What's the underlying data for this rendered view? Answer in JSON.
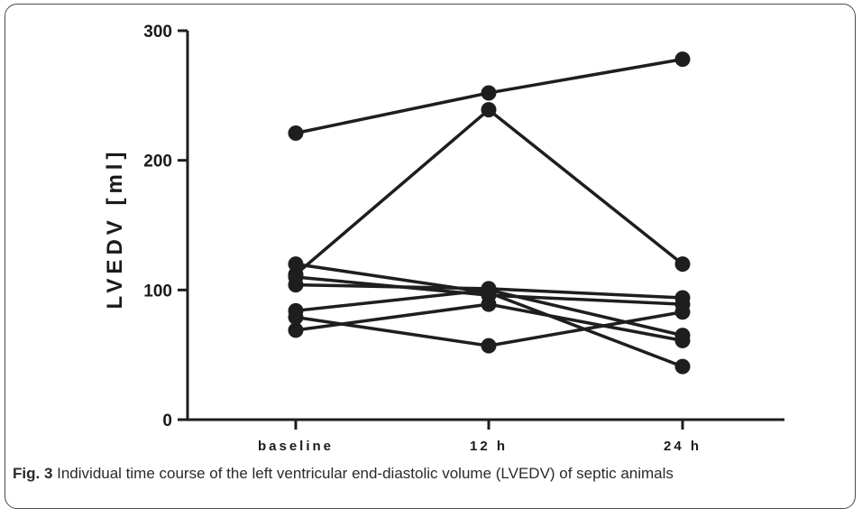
{
  "chart_data": {
    "type": "line",
    "categories": [
      "baseline",
      "12 h",
      "24 h"
    ],
    "ylabel": "LVEDV [ml]",
    "ylim": [
      0,
      300
    ],
    "yticks": [
      0,
      100,
      200,
      300
    ],
    "grid": false,
    "series": [
      {
        "values": [
          221,
          252,
          278
        ]
      },
      {
        "values": [
          112,
          239,
          120
        ]
      },
      {
        "values": [
          120,
          98,
          41
        ]
      },
      {
        "values": [
          104,
          101,
          94
        ]
      },
      {
        "values": [
          110,
          96,
          89
        ]
      },
      {
        "values": [
          84,
          100,
          65
        ]
      },
      {
        "values": [
          79,
          57,
          83
        ]
      },
      {
        "values": [
          69,
          89,
          61
        ]
      }
    ],
    "line_color": "#1e1e1e"
  },
  "caption": {
    "label": "Fig. 3",
    "text": " Individual time course of the left ventricular end-diastolic volume (LVEDV) of septic animals"
  }
}
